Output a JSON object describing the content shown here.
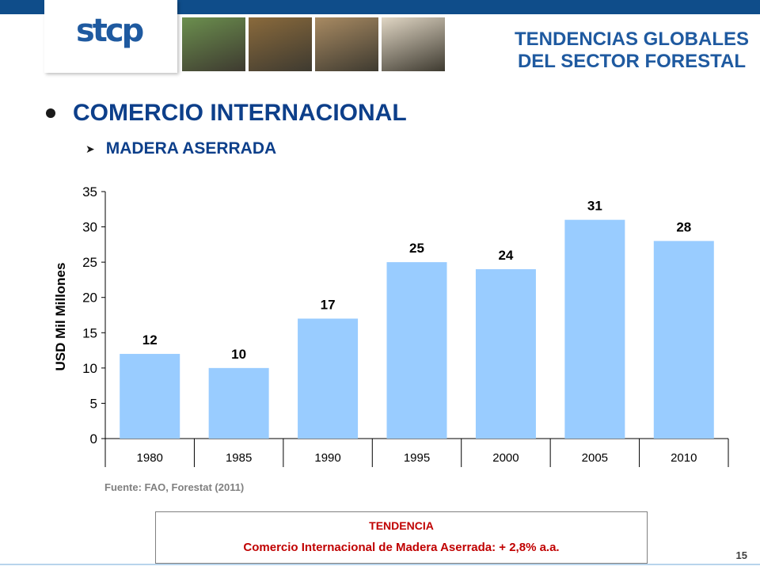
{
  "header": {
    "logo_text": "stcp",
    "title_line1": "TENDENCIAS GLOBALES",
    "title_line2": "DEL SECTOR FORESTAL",
    "photo_colors": [
      "#6b8f4e",
      "#8a6a3c",
      "#a88a62",
      "#e0d6c4"
    ]
  },
  "bullet": {
    "main": "COMERCIO INTERNACIONAL",
    "sub": "MADERA ASERRADA"
  },
  "chart_data": {
    "type": "bar",
    "categories": [
      "1980",
      "1985",
      "1990",
      "1995",
      "2000",
      "2005",
      "2010"
    ],
    "values": [
      12,
      10,
      17,
      25,
      24,
      31,
      28
    ],
    "data_labels": [
      "12",
      "10",
      "17",
      "25",
      "24",
      "31",
      "28"
    ],
    "title": "",
    "xlabel": "",
    "ylabel": "USD Mil Millones",
    "ylim": [
      0,
      35
    ],
    "yticks": [
      0,
      5,
      10,
      15,
      20,
      25,
      30,
      35
    ],
    "grid": false,
    "bar_color": "#99ccff"
  },
  "source": "Fuente: FAO, Forestat (2011)",
  "trend": {
    "title": "TENDENCIA",
    "text": "Comercio Internacional de Madera Aserrada: + 2,8% a.a."
  },
  "page_number": "15"
}
